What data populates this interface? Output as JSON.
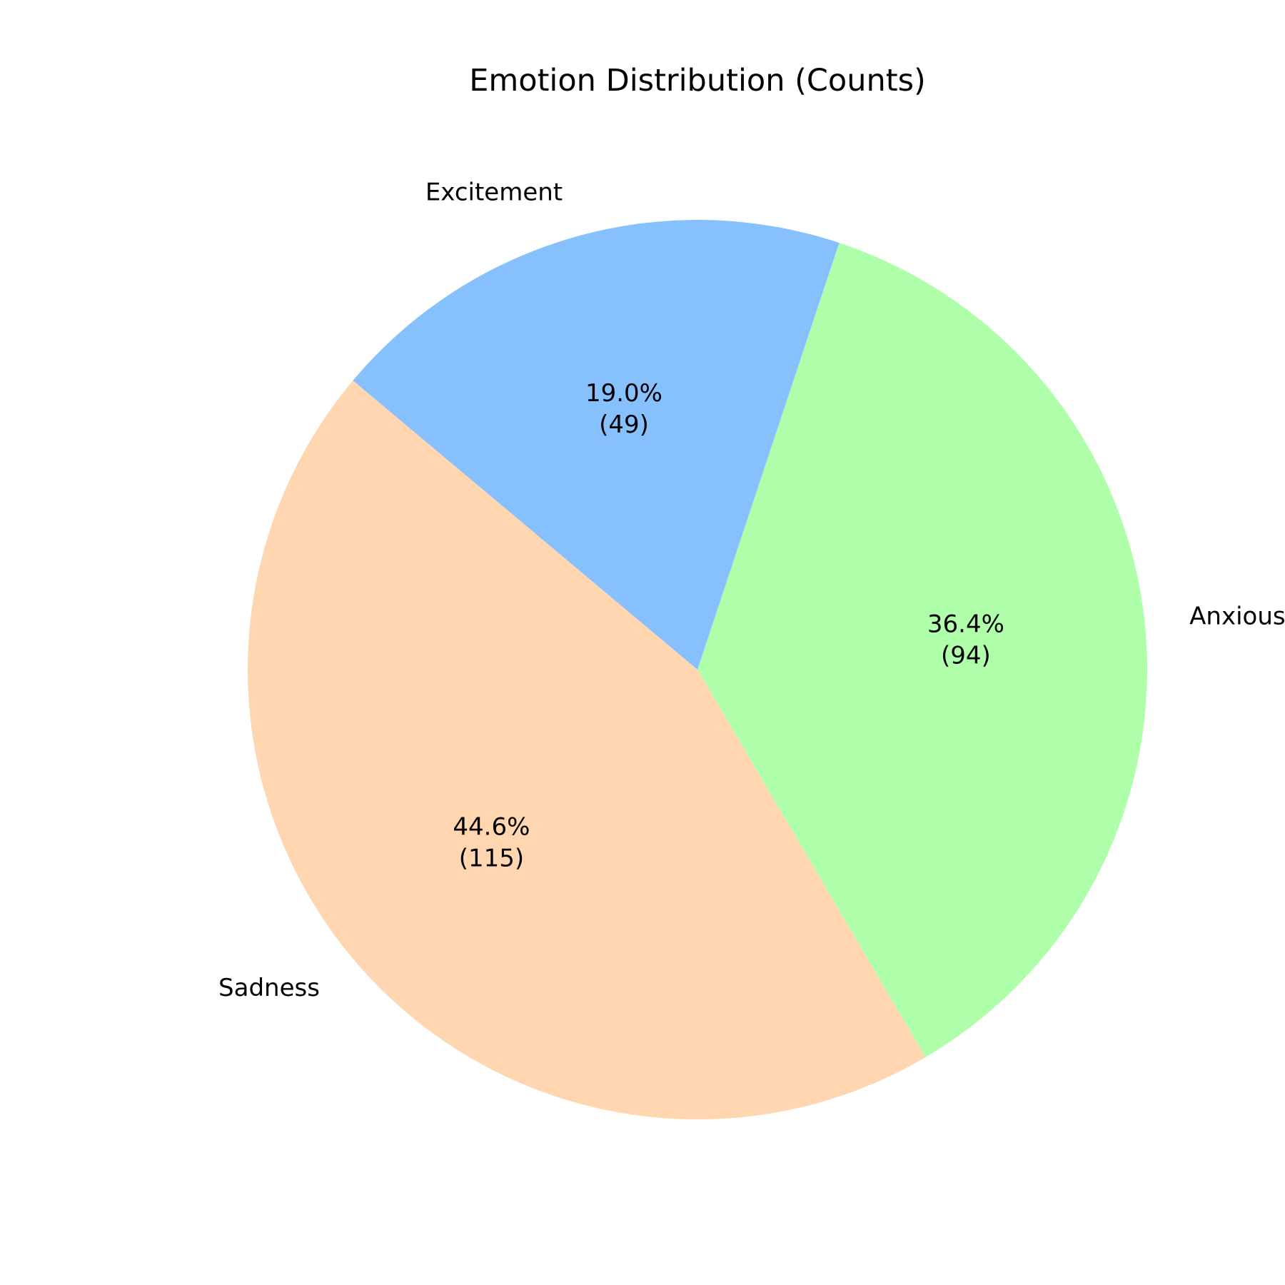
{
  "chart_data": {
    "type": "pie",
    "title": "Emotion Distribution (Counts)",
    "slices": [
      {
        "label": "Sadness",
        "value": 115,
        "percent_label": "44.6%",
        "count_label": "(115)",
        "color": "#ffd6b0"
      },
      {
        "label": "Anxious",
        "value": 94,
        "percent_label": "36.4%",
        "count_label": "(94)",
        "color": "#afffaa"
      },
      {
        "label": "Excitement",
        "value": 49,
        "percent_label": "19.0%",
        "count_label": "(49)",
        "color": "#87c1fd"
      }
    ],
    "legend": "none"
  }
}
